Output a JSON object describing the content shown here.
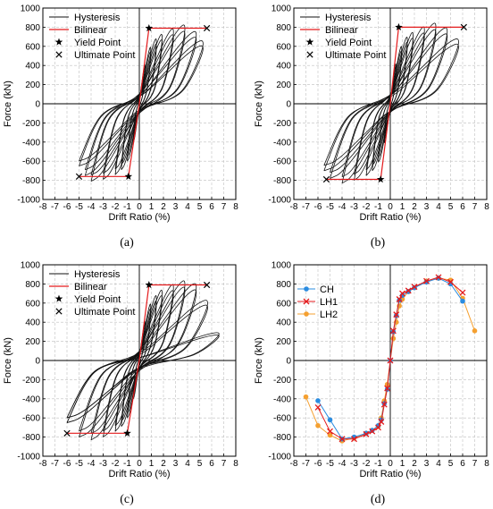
{
  "colors": {
    "hysteresis": "#111111",
    "bilinear": "#e41a1c",
    "grid": "#bfbfbf",
    "CH": "#2b8ce0",
    "LH1": "#e41a1c",
    "LH2": "#f5a030"
  },
  "chart_data": [
    {
      "id": "a",
      "caption": "(a)",
      "type": "line",
      "xlabel": "Drift Ratio (%)",
      "ylabel": "Force (kN)",
      "xlim": [
        -8,
        8
      ],
      "ylim": [
        -1000,
        1000
      ],
      "xticks": [
        -8,
        -7,
        -6,
        -5,
        -4,
        -3,
        -2,
        -1,
        0,
        1,
        2,
        3,
        4,
        5,
        6,
        7,
        8
      ],
      "yticks": [
        -1000,
        -800,
        -600,
        -400,
        -200,
        0,
        200,
        400,
        600,
        800,
        1000
      ],
      "grid": true,
      "legend_position": "top-left",
      "legend": [
        "Hysteresis",
        "Bilinear",
        "Yield Point",
        "Ultimate Point"
      ],
      "hysteresis": {
        "peaks_pos": [
          [
            0.5,
            420
          ],
          [
            1,
            610
          ],
          [
            1.5,
            700
          ],
          [
            2,
            750
          ],
          [
            3,
            810
          ],
          [
            4,
            850
          ],
          [
            5,
            780
          ],
          [
            5.6,
            680
          ]
        ],
        "peaks_neg": [
          [
            -0.5,
            -400
          ],
          [
            -1,
            -600
          ],
          [
            -1.5,
            -690
          ],
          [
            -2,
            -740
          ],
          [
            -3,
            -790
          ],
          [
            -4,
            -810
          ],
          [
            -4.5,
            -750
          ],
          [
            -5,
            -650
          ]
        ]
      },
      "bilinear": [
        [
          -5.0,
          -760
        ],
        [
          -0.9,
          -760
        ],
        [
          0,
          0
        ],
        [
          0.8,
          790
        ],
        [
          5.6,
          790
        ]
      ],
      "yield_points": [
        [
          0.8,
          790
        ],
        [
          -0.9,
          -760
        ]
      ],
      "ultimate_points": [
        [
          5.6,
          790
        ],
        [
          -5.0,
          -760
        ]
      ]
    },
    {
      "id": "b",
      "caption": "(b)",
      "type": "line",
      "xlabel": "Drift Ratio (%)",
      "ylabel": "Force (kN)",
      "xlim": [
        -8,
        8
      ],
      "ylim": [
        -1000,
        1000
      ],
      "xticks": [
        -8,
        -7,
        -6,
        -5,
        -4,
        -3,
        -2,
        -1,
        0,
        1,
        2,
        3,
        4,
        5,
        6,
        7,
        8
      ],
      "yticks": [
        -1000,
        -800,
        -600,
        -400,
        -200,
        0,
        200,
        400,
        600,
        800,
        1000
      ],
      "grid": true,
      "legend_position": "top-left",
      "legend": [
        "Hysteresis",
        "Bilinear",
        "Yield Point",
        "Ultimate Point"
      ],
      "hysteresis": {
        "peaks_pos": [
          [
            0.5,
            430
          ],
          [
            1,
            620
          ],
          [
            1.5,
            720
          ],
          [
            2,
            770
          ],
          [
            3,
            830
          ],
          [
            4,
            870
          ],
          [
            5,
            820
          ],
          [
            6,
            700
          ]
        ],
        "peaks_neg": [
          [
            -0.5,
            -410
          ],
          [
            -1,
            -610
          ],
          [
            -1.5,
            -700
          ],
          [
            -2,
            -750
          ],
          [
            -3,
            -800
          ],
          [
            -4,
            -830
          ],
          [
            -5,
            -780
          ],
          [
            -5.5,
            -700
          ]
        ]
      },
      "bilinear": [
        [
          -5.3,
          -790
        ],
        [
          -0.8,
          -790
        ],
        [
          0,
          0
        ],
        [
          0.7,
          800
        ],
        [
          6.1,
          800
        ]
      ],
      "yield_points": [
        [
          0.7,
          800
        ],
        [
          -0.8,
          -790
        ]
      ],
      "ultimate_points": [
        [
          6.1,
          800
        ],
        [
          -5.3,
          -790
        ]
      ]
    },
    {
      "id": "c",
      "caption": "(c)",
      "type": "line",
      "xlabel": "Drift Ratio (%)",
      "ylabel": "Force (kN)",
      "xlim": [
        -8,
        8
      ],
      "ylim": [
        -1000,
        1000
      ],
      "xticks": [
        -8,
        -7,
        -6,
        -5,
        -4,
        -3,
        -2,
        -1,
        0,
        1,
        2,
        3,
        4,
        5,
        6,
        7,
        8
      ],
      "yticks": [
        -1000,
        -800,
        -600,
        -400,
        -200,
        0,
        200,
        400,
        600,
        800,
        1000
      ],
      "grid": true,
      "legend_position": "top-left",
      "legend": [
        "Hysteresis",
        "Bilinear",
        "Yield Point",
        "Ultimate Point"
      ],
      "hysteresis": {
        "peaks_pos": [
          [
            0.5,
            420
          ],
          [
            1,
            610
          ],
          [
            1.5,
            700
          ],
          [
            2,
            760
          ],
          [
            3,
            820
          ],
          [
            4,
            860
          ],
          [
            5,
            830
          ],
          [
            6,
            650
          ],
          [
            7,
            300
          ]
        ],
        "peaks_neg": [
          [
            -0.5,
            -400
          ],
          [
            -1,
            -600
          ],
          [
            -1.5,
            -690
          ],
          [
            -2,
            -740
          ],
          [
            -3,
            -800
          ],
          [
            -4,
            -830
          ],
          [
            -5,
            -800
          ],
          [
            -6,
            -650
          ]
        ]
      },
      "bilinear": [
        [
          -6.0,
          -760
        ],
        [
          -1.0,
          -760
        ],
        [
          0,
          0
        ],
        [
          0.8,
          790
        ],
        [
          5.6,
          790
        ]
      ],
      "yield_points": [
        [
          0.8,
          790
        ],
        [
          -1.0,
          -760
        ]
      ],
      "ultimate_points": [
        [
          5.6,
          790
        ],
        [
          -6.0,
          -760
        ]
      ]
    },
    {
      "id": "d",
      "caption": "(d)",
      "type": "line",
      "xlabel": "Drift Ratio (%)",
      "ylabel": "Force (kN)",
      "xlim": [
        -8,
        8
      ],
      "ylim": [
        -1000,
        1000
      ],
      "xticks": [
        -8,
        -7,
        -6,
        -5,
        -4,
        -3,
        -2,
        -1,
        0,
        1,
        2,
        3,
        4,
        5,
        6,
        7,
        8
      ],
      "yticks": [
        -1000,
        -800,
        -600,
        -400,
        -200,
        0,
        200,
        400,
        600,
        800,
        1000
      ],
      "grid": true,
      "legend_position": "left",
      "series": [
        {
          "name": "CH",
          "marker": "circle",
          "points": [
            [
              -6,
              -420
            ],
            [
              -5,
              -620
            ],
            [
              -4,
              -820
            ],
            [
              -3,
              -800
            ],
            [
              -2,
              -760
            ],
            [
              -1.5,
              -730
            ],
            [
              -1,
              -680
            ],
            [
              -0.75,
              -620
            ],
            [
              -0.5,
              -450
            ],
            [
              -0.25,
              -300
            ],
            [
              0,
              0
            ],
            [
              0.25,
              300
            ],
            [
              0.5,
              470
            ],
            [
              0.75,
              630
            ],
            [
              1,
              680
            ],
            [
              1.5,
              720
            ],
            [
              2,
              760
            ],
            [
              3,
              820
            ],
            [
              4,
              860
            ],
            [
              5,
              800
            ],
            [
              6,
              620
            ]
          ]
        },
        {
          "name": "LH1",
          "marker": "x",
          "points": [
            [
              -6,
              -490
            ],
            [
              -5,
              -740
            ],
            [
              -4,
              -820
            ],
            [
              -3,
              -820
            ],
            [
              -2,
              -770
            ],
            [
              -1.5,
              -740
            ],
            [
              -1,
              -700
            ],
            [
              -0.75,
              -640
            ],
            [
              -0.5,
              -460
            ],
            [
              -0.25,
              -290
            ],
            [
              0,
              0
            ],
            [
              0.25,
              310
            ],
            [
              0.5,
              480
            ],
            [
              0.75,
              640
            ],
            [
              1,
              700
            ],
            [
              1.5,
              730
            ],
            [
              2,
              770
            ],
            [
              3,
              830
            ],
            [
              4,
              870
            ],
            [
              5,
              820
            ],
            [
              6,
              710
            ]
          ]
        },
        {
          "name": "LH2",
          "marker": "circle",
          "points": [
            [
              -7,
              -380
            ],
            [
              -6,
              -680
            ],
            [
              -5,
              -780
            ],
            [
              -4,
              -840
            ],
            [
              -3,
              -810
            ],
            [
              -2,
              -760
            ],
            [
              -1.5,
              -730
            ],
            [
              -1,
              -690
            ],
            [
              -0.75,
              -600
            ],
            [
              -0.5,
              -420
            ],
            [
              -0.25,
              -250
            ],
            [
              0,
              0
            ],
            [
              0.25,
              230
            ],
            [
              0.5,
              400
            ],
            [
              0.75,
              570
            ],
            [
              1,
              640
            ],
            [
              1.5,
              720
            ],
            [
              2,
              760
            ],
            [
              3,
              830
            ],
            [
              4,
              860
            ],
            [
              5,
              840
            ],
            [
              6,
              650
            ],
            [
              7,
              310
            ]
          ]
        }
      ]
    }
  ]
}
